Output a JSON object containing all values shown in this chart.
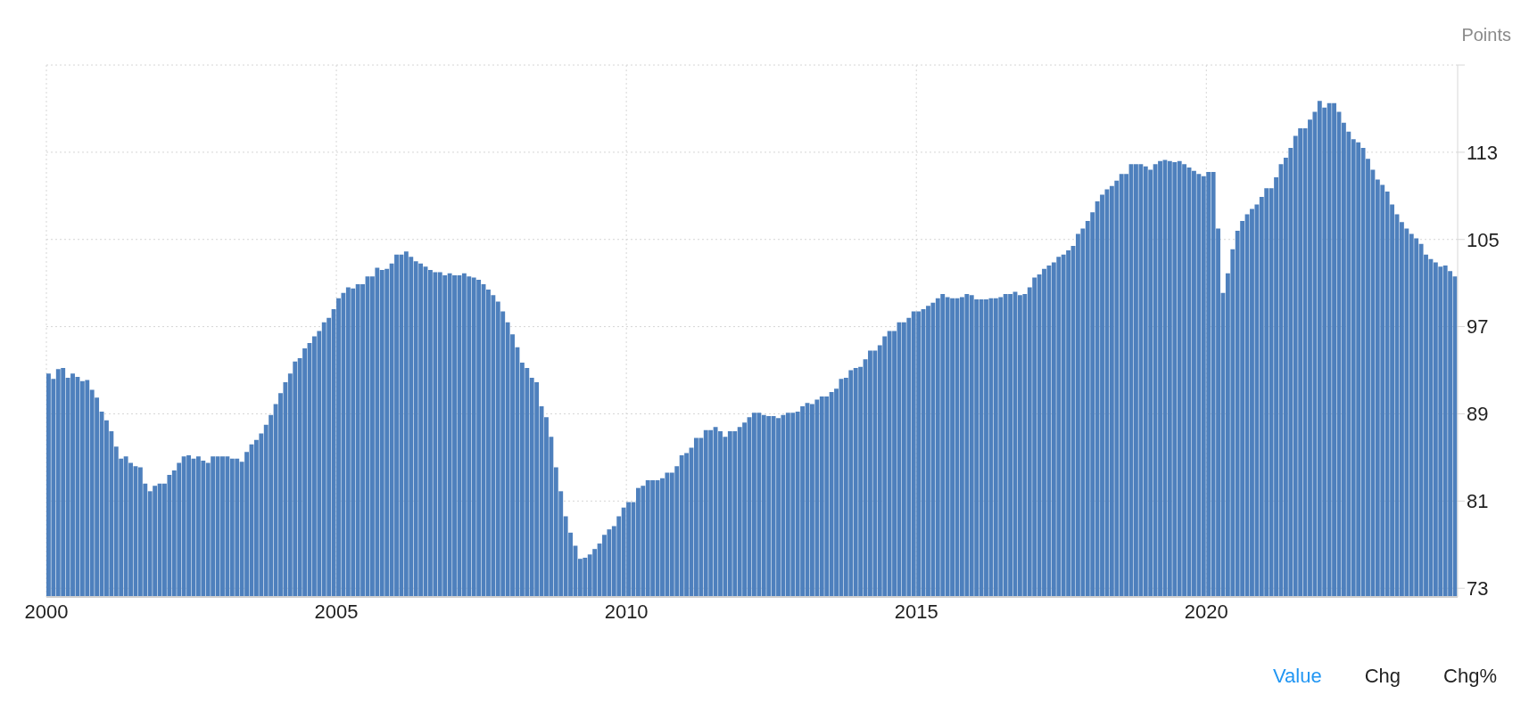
{
  "chart_data": {
    "type": "bar",
    "ylabel": "Points",
    "color": "#4e80bd",
    "x": [
      "2000-01",
      "2000-02",
      "2000-03",
      "2000-04",
      "2000-05",
      "2000-06",
      "2000-07",
      "2000-08",
      "2000-09",
      "2000-10",
      "2000-11",
      "2000-12",
      "2001-01",
      "2001-02",
      "2001-03",
      "2001-04",
      "2001-05",
      "2001-06",
      "2001-07",
      "2001-08",
      "2001-09",
      "2001-10",
      "2001-11",
      "2001-12",
      "2002-01",
      "2002-02",
      "2002-03",
      "2002-04",
      "2002-05",
      "2002-06",
      "2002-07",
      "2002-08",
      "2002-09",
      "2002-10",
      "2002-11",
      "2002-12",
      "2003-01",
      "2003-02",
      "2003-03",
      "2003-04",
      "2003-05",
      "2003-06",
      "2003-07",
      "2003-08",
      "2003-09",
      "2003-10",
      "2003-11",
      "2003-12",
      "2004-01",
      "2004-02",
      "2004-03",
      "2004-04",
      "2004-05",
      "2004-06",
      "2004-07",
      "2004-08",
      "2004-09",
      "2004-10",
      "2004-11",
      "2004-12",
      "2005-01",
      "2005-02",
      "2005-03",
      "2005-04",
      "2005-05",
      "2005-06",
      "2005-07",
      "2005-08",
      "2005-09",
      "2005-10",
      "2005-11",
      "2005-12",
      "2006-01",
      "2006-02",
      "2006-03",
      "2006-04",
      "2006-05",
      "2006-06",
      "2006-07",
      "2006-08",
      "2006-09",
      "2006-10",
      "2006-11",
      "2006-12",
      "2007-01",
      "2007-02",
      "2007-03",
      "2007-04",
      "2007-05",
      "2007-06",
      "2007-07",
      "2007-08",
      "2007-09",
      "2007-10",
      "2007-11",
      "2007-12",
      "2008-01",
      "2008-02",
      "2008-03",
      "2008-04",
      "2008-05",
      "2008-06",
      "2008-07",
      "2008-08",
      "2008-09",
      "2008-10",
      "2008-11",
      "2008-12",
      "2009-01",
      "2009-02",
      "2009-03",
      "2009-04",
      "2009-05",
      "2009-06",
      "2009-07",
      "2009-08",
      "2009-09",
      "2009-10",
      "2009-11",
      "2009-12",
      "2010-01",
      "2010-02",
      "2010-03",
      "2010-04",
      "2010-05",
      "2010-06",
      "2010-07",
      "2010-08",
      "2010-09",
      "2010-10",
      "2010-11",
      "2010-12",
      "2011-01",
      "2011-02",
      "2011-03",
      "2011-04",
      "2011-05",
      "2011-06",
      "2011-07",
      "2011-08",
      "2011-09",
      "2011-10",
      "2011-11",
      "2011-12",
      "2012-01",
      "2012-02",
      "2012-03",
      "2012-04",
      "2012-05",
      "2012-06",
      "2012-07",
      "2012-08",
      "2012-09",
      "2012-10",
      "2012-11",
      "2012-12",
      "2013-01",
      "2013-02",
      "2013-03",
      "2013-04",
      "2013-05",
      "2013-06",
      "2013-07",
      "2013-08",
      "2013-09",
      "2013-10",
      "2013-11",
      "2013-12",
      "2014-01",
      "2014-02",
      "2014-03",
      "2014-04",
      "2014-05",
      "2014-06",
      "2014-07",
      "2014-08",
      "2014-09",
      "2014-10",
      "2014-11",
      "2014-12",
      "2015-01",
      "2015-02",
      "2015-03",
      "2015-04",
      "2015-05",
      "2015-06",
      "2015-07",
      "2015-08",
      "2015-09",
      "2015-10",
      "2015-11",
      "2015-12",
      "2016-01",
      "2016-02",
      "2016-03",
      "2016-04",
      "2016-05",
      "2016-06",
      "2016-07",
      "2016-08",
      "2016-09",
      "2016-10",
      "2016-11",
      "2016-12",
      "2017-01",
      "2017-02",
      "2017-03",
      "2017-04",
      "2017-05",
      "2017-06",
      "2017-07",
      "2017-08",
      "2017-09",
      "2017-10",
      "2017-11",
      "2017-12",
      "2018-01",
      "2018-02",
      "2018-03",
      "2018-04",
      "2018-05",
      "2018-06",
      "2018-07",
      "2018-08",
      "2018-09",
      "2018-10",
      "2018-11",
      "2018-12",
      "2019-01",
      "2019-02",
      "2019-03",
      "2019-04",
      "2019-05",
      "2019-06",
      "2019-07",
      "2019-08",
      "2019-09",
      "2019-10",
      "2019-11",
      "2019-12",
      "2020-01",
      "2020-02",
      "2020-03",
      "2020-04",
      "2020-05",
      "2020-06",
      "2020-07",
      "2020-08",
      "2020-09",
      "2020-10",
      "2020-11",
      "2020-12",
      "2021-01",
      "2021-02",
      "2021-03",
      "2021-04",
      "2021-05",
      "2021-06",
      "2021-07",
      "2021-08",
      "2021-09",
      "2021-10",
      "2021-11",
      "2021-12",
      "2022-01",
      "2022-02",
      "2022-03",
      "2022-04",
      "2022-05",
      "2022-06",
      "2022-07",
      "2022-08",
      "2022-09",
      "2022-10",
      "2022-11",
      "2022-12",
      "2023-01",
      "2023-02",
      "2023-03",
      "2023-04",
      "2023-05",
      "2023-06",
      "2023-07",
      "2023-08",
      "2023-09",
      "2023-10",
      "2023-11",
      "2023-12",
      "2024-01",
      "2024-02",
      "2024-03",
      "2024-04"
    ],
    "values": [
      92.7,
      92.2,
      93.1,
      93.2,
      92.3,
      92.7,
      92.4,
      92.0,
      92.1,
      91.2,
      90.5,
      89.2,
      88.4,
      87.4,
      86.0,
      84.9,
      85.1,
      84.5,
      84.2,
      84.1,
      82.6,
      81.9,
      82.4,
      82.6,
      82.6,
      83.4,
      83.8,
      84.5,
      85.1,
      85.2,
      84.9,
      85.1,
      84.7,
      84.5,
      85.1,
      85.1,
      85.1,
      85.1,
      84.9,
      84.9,
      84.6,
      85.5,
      86.2,
      86.6,
      87.2,
      88.0,
      88.9,
      89.9,
      90.9,
      91.9,
      92.7,
      93.8,
      94.1,
      95.0,
      95.5,
      96.1,
      96.6,
      97.4,
      97.8,
      98.6,
      99.6,
      100.1,
      100.6,
      100.5,
      100.9,
      100.9,
      101.6,
      101.6,
      102.4,
      102.2,
      102.3,
      102.8,
      103.6,
      103.6,
      103.9,
      103.4,
      103.0,
      102.8,
      102.5,
      102.2,
      102.0,
      102.0,
      101.7,
      101.9,
      101.7,
      101.7,
      101.9,
      101.6,
      101.5,
      101.3,
      100.9,
      100.4,
      99.9,
      99.3,
      98.4,
      97.4,
      96.3,
      95.1,
      93.7,
      93.2,
      92.3,
      91.9,
      89.7,
      88.7,
      86.9,
      84.1,
      81.9,
      79.6,
      78.1,
      76.9,
      75.7,
      75.8,
      76.1,
      76.6,
      77.1,
      77.9,
      78.4,
      78.7,
      79.6,
      80.4,
      80.9,
      80.9,
      82.2,
      82.4,
      82.9,
      82.9,
      82.9,
      83.1,
      83.6,
      83.6,
      84.2,
      85.2,
      85.4,
      85.9,
      86.8,
      86.8,
      87.5,
      87.5,
      87.8,
      87.4,
      86.9,
      87.4,
      87.4,
      87.8,
      88.2,
      88.7,
      89.1,
      89.1,
      88.9,
      88.8,
      88.8,
      88.6,
      88.9,
      89.1,
      89.1,
      89.2,
      89.7,
      90.0,
      89.9,
      90.3,
      90.6,
      90.6,
      91.0,
      91.3,
      92.2,
      92.3,
      93.0,
      93.2,
      93.3,
      94.0,
      94.8,
      94.8,
      95.3,
      96.1,
      96.6,
      96.6,
      97.4,
      97.4,
      97.8,
      98.4,
      98.4,
      98.6,
      98.9,
      99.2,
      99.6,
      100.0,
      99.7,
      99.6,
      99.6,
      99.7,
      100.0,
      99.9,
      99.5,
      99.5,
      99.5,
      99.6,
      99.6,
      99.7,
      100.0,
      100.0,
      100.2,
      99.9,
      100.0,
      100.6,
      101.5,
      101.8,
      102.3,
      102.6,
      102.9,
      103.4,
      103.6,
      104.0,
      104.4,
      105.5,
      106.0,
      106.7,
      107.5,
      108.5,
      109.1,
      109.6,
      109.9,
      110.4,
      111.0,
      111.0,
      111.9,
      111.9,
      111.9,
      111.7,
      111.4,
      111.9,
      112.2,
      112.3,
      112.2,
      112.1,
      112.2,
      111.9,
      111.6,
      111.3,
      111.0,
      110.8,
      111.2,
      111.2,
      106.0,
      100.1,
      101.9,
      104.1,
      105.8,
      106.7,
      107.3,
      107.8,
      108.2,
      108.9,
      109.7,
      109.7,
      110.7,
      111.9,
      112.5,
      113.4,
      114.5,
      115.2,
      115.2,
      116.0,
      116.7,
      117.7,
      117.1,
      117.5,
      117.5,
      116.7,
      115.7,
      114.9,
      114.2,
      113.9,
      113.4,
      112.4,
      111.4,
      110.5,
      110.0,
      109.4,
      108.2,
      107.3,
      106.6,
      106.0,
      105.5,
      105.1,
      104.6,
      103.6,
      103.2,
      102.9,
      102.5,
      102.6,
      102.1,
      101.6
    ],
    "xlim": [
      "2000-01",
      "2024-05"
    ],
    "xticks": [
      "2000",
      "2005",
      "2010",
      "2015",
      "2020"
    ],
    "ylim": [
      72.2,
      121
    ],
    "yticks": [
      73,
      81,
      89,
      97,
      105,
      113,
      {
        "value": 121,
        "label": null
      }
    ],
    "grid": true,
    "annotations": [
      "Value",
      "Chg",
      "Chg%"
    ]
  }
}
